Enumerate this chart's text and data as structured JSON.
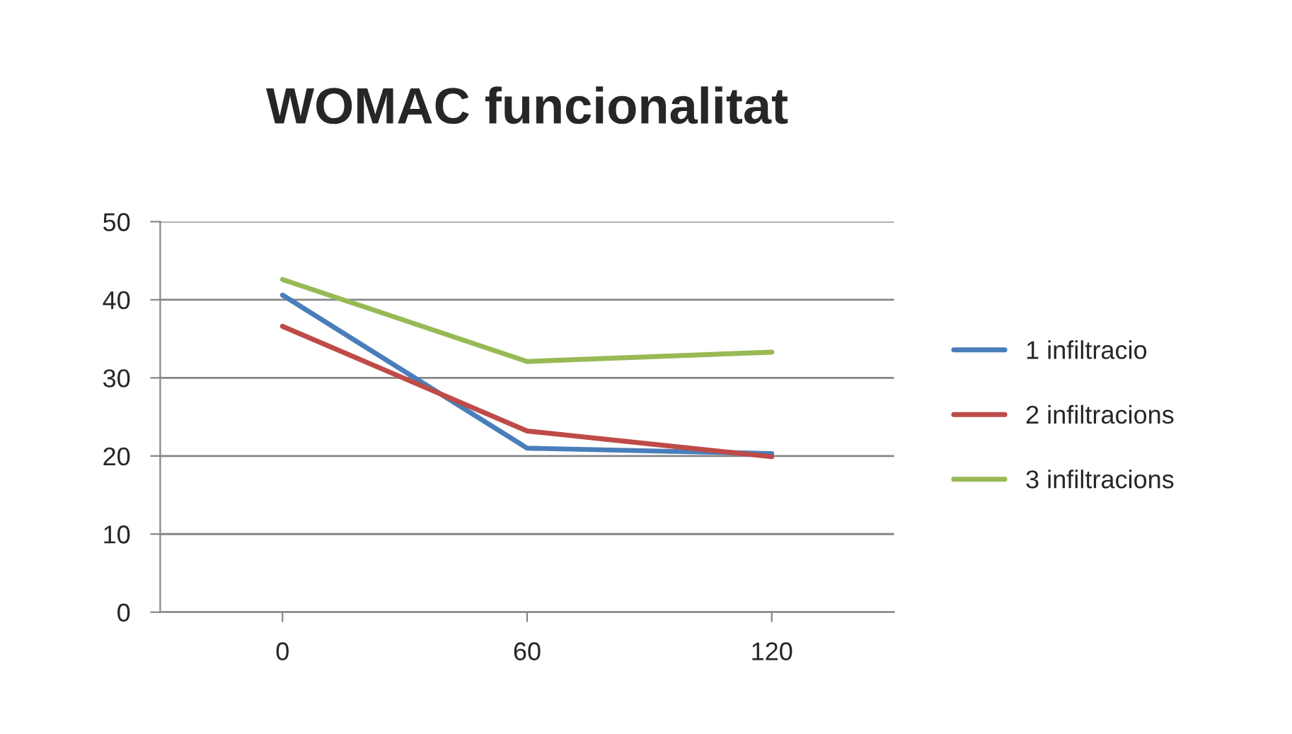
{
  "chart_data": {
    "type": "line",
    "title": "WOMAC funcionalitat",
    "categories": [
      "0",
      "60",
      "120"
    ],
    "series": [
      {
        "name": "1 infiltracio",
        "color": "#4a7ebb",
        "values": [
          40.6,
          21.0,
          20.3
        ]
      },
      {
        "name": "2 infiltracions",
        "color": "#be4b48",
        "values": [
          36.6,
          23.2,
          19.9
        ]
      },
      {
        "name": "3 infiltracions",
        "color": "#98b954",
        "values": [
          42.6,
          32.1,
          33.3
        ]
      }
    ],
    "ylim": [
      0,
      50
    ],
    "yticks": [
      0,
      10,
      20,
      30,
      40,
      50
    ],
    "grid": "y",
    "legend": "right",
    "marker": "none",
    "line_style": "solid"
  }
}
